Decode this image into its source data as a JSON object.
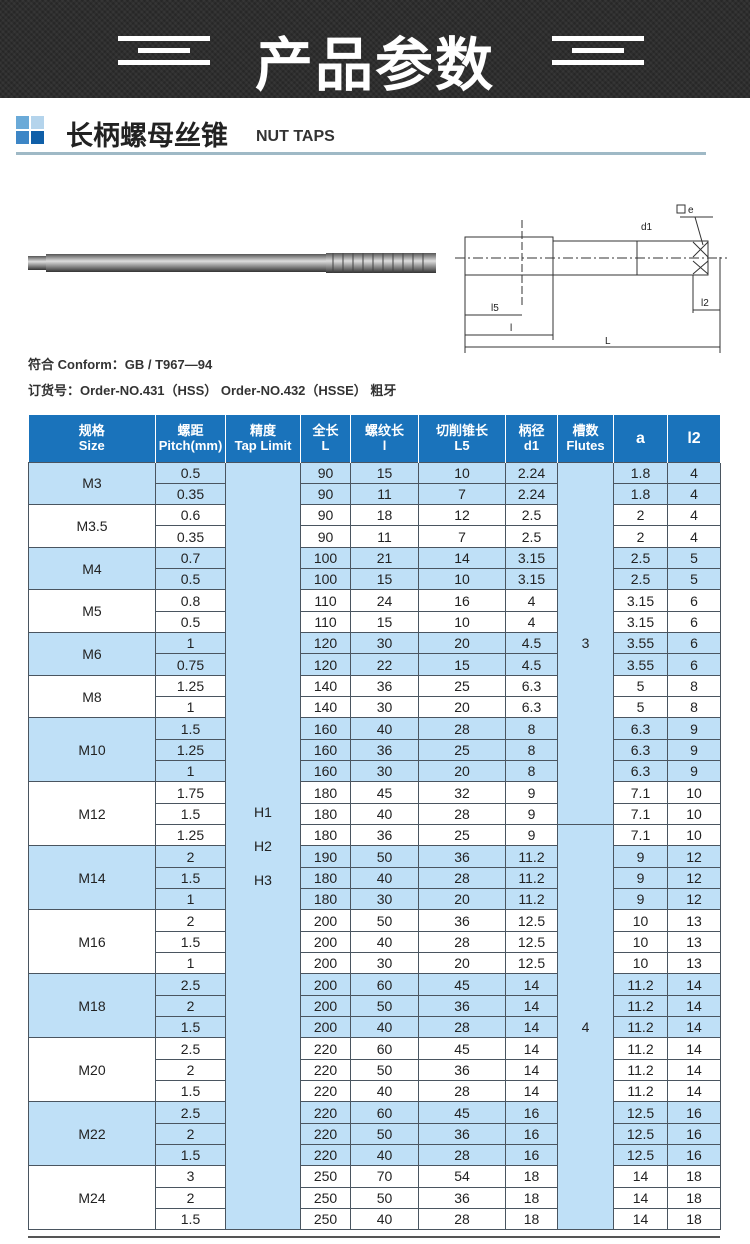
{
  "banner": {
    "title": "产品参数"
  },
  "section": {
    "title": "长柄螺母丝锥",
    "subtitle": "NUT TAPS"
  },
  "diagram": {
    "labels": {
      "square": "□ e",
      "d1": "d1",
      "l5": "l5",
      "l": "l",
      "L": "L",
      "l2": "l2"
    }
  },
  "info": {
    "conform": "符合 Conform：GB / T967—94",
    "order": "订货号：Order-NO.431（HSS）  Order-NO.432（HSSE）  粗牙"
  },
  "colors": {
    "header": "#1a73bb",
    "row_shade": "#bfe0f7"
  },
  "table": {
    "headers": [
      [
        "规格",
        "Size"
      ],
      [
        "螺距",
        "Pitch(mm)"
      ],
      [
        "精度",
        "Tap Limit"
      ],
      [
        "全长",
        "L"
      ],
      [
        "螺纹长",
        "l"
      ],
      [
        "切削锥长",
        "L5"
      ],
      [
        "柄径",
        "d1"
      ],
      [
        "槽数",
        "Flutes"
      ],
      [
        "a",
        ""
      ],
      [
        "l2",
        ""
      ]
    ],
    "tap_limit": [
      "H1",
      "H2",
      "H3"
    ],
    "flutes": [
      {
        "value": "3",
        "rows": 17
      },
      {
        "value": "4",
        "rows": 19
      }
    ],
    "groups": [
      {
        "size": "M3",
        "rows": [
          [
            "0.5",
            "90",
            "15",
            "10",
            "2.24",
            "1.8",
            "4"
          ],
          [
            "0.35",
            "90",
            "11",
            "7",
            "2.24",
            "1.8",
            "4"
          ]
        ]
      },
      {
        "size": "M3.5",
        "rows": [
          [
            "0.6",
            "90",
            "18",
            "12",
            "2.5",
            "2",
            "4"
          ],
          [
            "0.35",
            "90",
            "11",
            "7",
            "2.5",
            "2",
            "4"
          ]
        ]
      },
      {
        "size": "M4",
        "rows": [
          [
            "0.7",
            "100",
            "21",
            "14",
            "3.15",
            "2.5",
            "5"
          ],
          [
            "0.5",
            "100",
            "15",
            "10",
            "3.15",
            "2.5",
            "5"
          ]
        ]
      },
      {
        "size": "M5",
        "rows": [
          [
            "0.8",
            "110",
            "24",
            "16",
            "4",
            "3.15",
            "6"
          ],
          [
            "0.5",
            "110",
            "15",
            "10",
            "4",
            "3.15",
            "6"
          ]
        ]
      },
      {
        "size": "M6",
        "rows": [
          [
            "1",
            "120",
            "30",
            "20",
            "4.5",
            "3.55",
            "6"
          ],
          [
            "0.75",
            "120",
            "22",
            "15",
            "4.5",
            "3.55",
            "6"
          ]
        ]
      },
      {
        "size": "M8",
        "rows": [
          [
            "1.25",
            "140",
            "36",
            "25",
            "6.3",
            "5",
            "8"
          ],
          [
            "1",
            "140",
            "30",
            "20",
            "6.3",
            "5",
            "8"
          ]
        ]
      },
      {
        "size": "M10",
        "rows": [
          [
            "1.5",
            "160",
            "40",
            "28",
            "8",
            "6.3",
            "9"
          ],
          [
            "1.25",
            "160",
            "36",
            "25",
            "8",
            "6.3",
            "9"
          ],
          [
            "1",
            "160",
            "30",
            "20",
            "8",
            "6.3",
            "9"
          ]
        ]
      },
      {
        "size": "M12",
        "rows": [
          [
            "1.75",
            "180",
            "45",
            "32",
            "9",
            "7.1",
            "10"
          ],
          [
            "1.5",
            "180",
            "40",
            "28",
            "9",
            "7.1",
            "10"
          ],
          [
            "1.25",
            "180",
            "36",
            "25",
            "9",
            "7.1",
            "10"
          ]
        ]
      },
      {
        "size": "M14",
        "rows": [
          [
            "2",
            "190",
            "50",
            "36",
            "11.2",
            "9",
            "12"
          ],
          [
            "1.5",
            "180",
            "40",
            "28",
            "11.2",
            "9",
            "12"
          ],
          [
            "1",
            "180",
            "30",
            "20",
            "11.2",
            "9",
            "12"
          ]
        ]
      },
      {
        "size": "M16",
        "rows": [
          [
            "2",
            "200",
            "50",
            "36",
            "12.5",
            "10",
            "13"
          ],
          [
            "1.5",
            "200",
            "40",
            "28",
            "12.5",
            "10",
            "13"
          ],
          [
            "1",
            "200",
            "30",
            "20",
            "12.5",
            "10",
            "13"
          ]
        ]
      },
      {
        "size": "M18",
        "rows": [
          [
            "2.5",
            "200",
            "60",
            "45",
            "14",
            "11.2",
            "14"
          ],
          [
            "2",
            "200",
            "50",
            "36",
            "14",
            "11.2",
            "14"
          ],
          [
            "1.5",
            "200",
            "40",
            "28",
            "14",
            "11.2",
            "14"
          ]
        ]
      },
      {
        "size": "M20",
        "rows": [
          [
            "2.5",
            "220",
            "60",
            "45",
            "14",
            "11.2",
            "14"
          ],
          [
            "2",
            "220",
            "50",
            "36",
            "14",
            "11.2",
            "14"
          ],
          [
            "1.5",
            "220",
            "40",
            "28",
            "14",
            "11.2",
            "14"
          ]
        ]
      },
      {
        "size": "M22",
        "rows": [
          [
            "2.5",
            "220",
            "60",
            "45",
            "16",
            "12.5",
            "16"
          ],
          [
            "2",
            "220",
            "50",
            "36",
            "16",
            "12.5",
            "16"
          ],
          [
            "1.5",
            "220",
            "40",
            "28",
            "16",
            "12.5",
            "16"
          ]
        ]
      },
      {
        "size": "M24",
        "rows": [
          [
            "3",
            "250",
            "70",
            "54",
            "18",
            "14",
            "18"
          ],
          [
            "2",
            "250",
            "50",
            "36",
            "18",
            "14",
            "18"
          ],
          [
            "1.5",
            "250",
            "40",
            "28",
            "18",
            "14",
            "18"
          ]
        ]
      }
    ]
  }
}
